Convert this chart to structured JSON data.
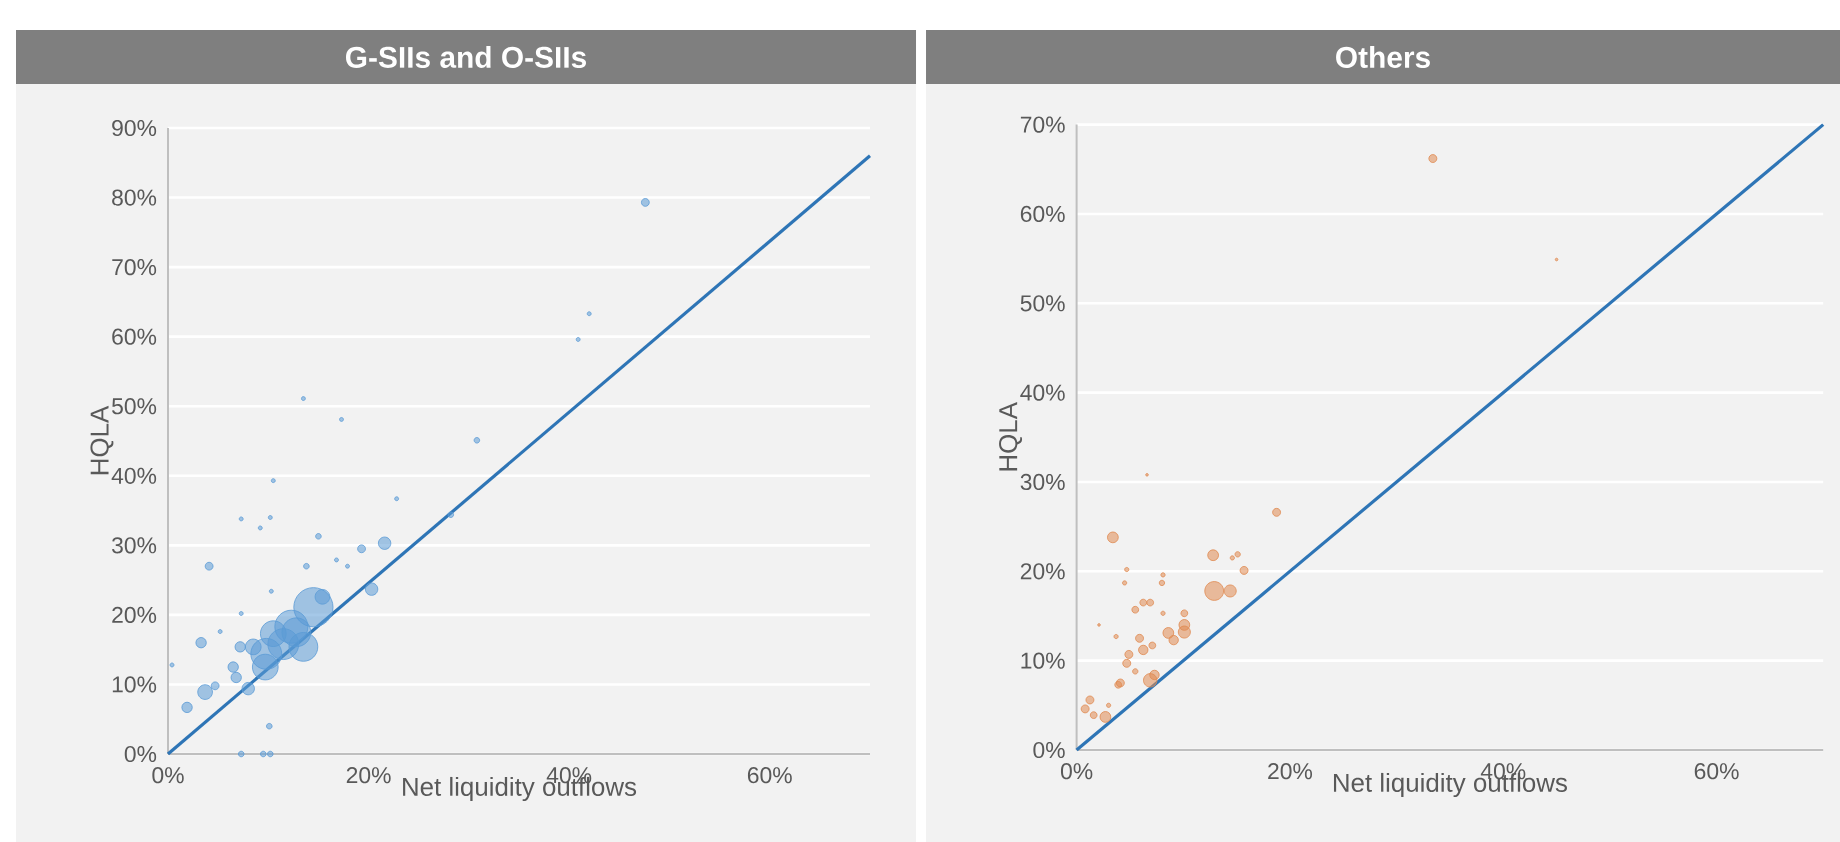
{
  "chart_data": [
    {
      "type": "bubble",
      "title": "G-SIIs and O-SIIs",
      "xlabel": "Net liquidity outflows",
      "ylabel": "HQLA",
      "xlim": [
        0,
        70
      ],
      "ylim": [
        0,
        90
      ],
      "xticks": [
        {
          "value": 0,
          "label": "0%"
        },
        {
          "value": 20,
          "label": "20%"
        },
        {
          "value": 40,
          "label": "40%"
        },
        {
          "value": 60,
          "label": "60%"
        }
      ],
      "yticks": [
        {
          "value": 0,
          "label": "0%"
        },
        {
          "value": 10,
          "label": "10%"
        },
        {
          "value": 20,
          "label": "20%"
        },
        {
          "value": 30,
          "label": "30%"
        },
        {
          "value": 40,
          "label": "40%"
        },
        {
          "value": 50,
          "label": "50%"
        },
        {
          "value": 60,
          "label": "60%"
        },
        {
          "value": 70,
          "label": "70%"
        },
        {
          "value": 80,
          "label": "80%"
        },
        {
          "value": 90,
          "label": "90%"
        }
      ],
      "grid": "y",
      "series": [
        {
          "type": "bubble",
          "color": "#5b9bd5",
          "x": [
            47.6,
            42.0,
            40.9,
            30.8,
            17.3,
            13.5,
            22.8,
            28.2,
            21.6,
            19.3,
            15.0,
            10.5,
            10.2,
            9.2,
            7.3,
            4.1,
            13.8,
            17.9,
            15.4,
            20.3,
            14.5,
            12.3,
            13.5,
            9.8,
            10.5,
            8.5,
            9.7,
            7.2,
            6.5,
            6.8,
            8.0,
            3.3,
            5.2,
            3.7,
            4.7,
            1.9,
            0.4,
            10.1,
            7.3,
            9.5,
            10.2,
            7.3,
            10.3,
            16.8,
            11.5,
            12.8
          ],
          "values": [
            79.3,
            63.3,
            59.6,
            45.1,
            48.1,
            51.1,
            36.7,
            34.4,
            30.3,
            29.5,
            31.3,
            39.3,
            34.0,
            32.5,
            33.8,
            27.0,
            27.0,
            27.0,
            22.6,
            23.7,
            21.1,
            18.3,
            15.4,
            14.4,
            17.3,
            15.4,
            12.5,
            15.4,
            12.5,
            11.0,
            9.4,
            16.0,
            17.6,
            8.9,
            9.8,
            6.7,
            12.8,
            4.0,
            0,
            0,
            0,
            20.2,
            23.4,
            27.9,
            15.8,
            17.5
          ],
          "sizes": [
            0.04,
            0.01,
            0.01,
            0.02,
            0.01,
            0.01,
            0.01,
            0.02,
            0.1,
            0.04,
            0.02,
            0.01,
            0.01,
            0.01,
            0.01,
            0.04,
            0.02,
            0.01,
            0.14,
            0.1,
            1,
            0.71,
            0.54,
            0.62,
            0.43,
            0.16,
            0.43,
            0.07,
            0.07,
            0.07,
            0.1,
            0.07,
            0.01,
            0.14,
            0.04,
            0.07,
            0.01,
            0.02,
            0.02,
            0.02,
            0.02,
            0.01,
            0.01,
            0.01,
            0.62,
            0.54
          ]
        },
        {
          "type": "line",
          "color": "#2e75b6",
          "x": [
            0,
            70
          ],
          "values": [
            0,
            86
          ]
        }
      ]
    },
    {
      "type": "bubble",
      "title": "Others",
      "xlabel": "Net liquidity outflows",
      "ylabel": "HQLA",
      "xlim": [
        0,
        70
      ],
      "ylim": [
        0,
        70
      ],
      "xticks": [
        {
          "value": 0,
          "label": "0%"
        },
        {
          "value": 20,
          "label": "20%"
        },
        {
          "value": 40,
          "label": "40%"
        },
        {
          "value": 60,
          "label": "60%"
        }
      ],
      "yticks": [
        {
          "value": 0,
          "label": "0%"
        },
        {
          "value": 10,
          "label": "10%"
        },
        {
          "value": 20,
          "label": "20%"
        },
        {
          "value": 30,
          "label": "30%"
        },
        {
          "value": 40,
          "label": "40%"
        },
        {
          "value": 50,
          "label": "50%"
        },
        {
          "value": 60,
          "label": "60%"
        },
        {
          "value": 70,
          "label": "70%"
        }
      ],
      "grid": "y",
      "series": [
        {
          "type": "bubble",
          "color": "#e08a52",
          "x": [
            33.4,
            45.0,
            18.75,
            3.4,
            12.8,
            15.1,
            14.6,
            15.7,
            12.9,
            14.4,
            4.7,
            4.5,
            8.0,
            8.1,
            6.25,
            6.9,
            5.5,
            8.1,
            10.1,
            10.1,
            10.1,
            8.6,
            9.1,
            5.9,
            6.25,
            7.1,
            3.7,
            4.9,
            4.7,
            5.5,
            6.9,
            7.3,
            4.1,
            3.9,
            1.25,
            0.8,
            1.6,
            2.7,
            3.0,
            6.6,
            2.1
          ],
          "values": [
            66.2,
            54.9,
            26.6,
            23.8,
            21.8,
            21.9,
            21.5,
            20.1,
            17.8,
            17.8,
            20.2,
            18.7,
            18.7,
            19.6,
            16.5,
            16.5,
            15.7,
            15.3,
            15.3,
            14.0,
            13.2,
            13.1,
            12.3,
            12.5,
            11.2,
            11.7,
            12.7,
            10.7,
            9.7,
            8.8,
            7.8,
            8.4,
            7.5,
            7.3,
            5.6,
            4.6,
            3.9,
            3.7,
            5.0,
            30.8,
            14.0
          ],
          "sizes": [
            0.18,
            0.02,
            0.18,
            0.33,
            0.33,
            0.08,
            0.05,
            0.18,
            1,
            0.41,
            0.05,
            0.05,
            0.08,
            0.05,
            0.13,
            0.13,
            0.13,
            0.05,
            0.13,
            0.33,
            0.41,
            0.33,
            0.25,
            0.18,
            0.25,
            0.13,
            0.05,
            0.18,
            0.18,
            0.08,
            0.51,
            0.25,
            0.18,
            0.13,
            0.18,
            0.18,
            0.13,
            0.33,
            0.05,
            0.02,
            0.02
          ]
        },
        {
          "type": "line",
          "color": "#2e75b6",
          "x": [
            0,
            70
          ],
          "values": [
            0,
            70
          ]
        }
      ]
    }
  ]
}
